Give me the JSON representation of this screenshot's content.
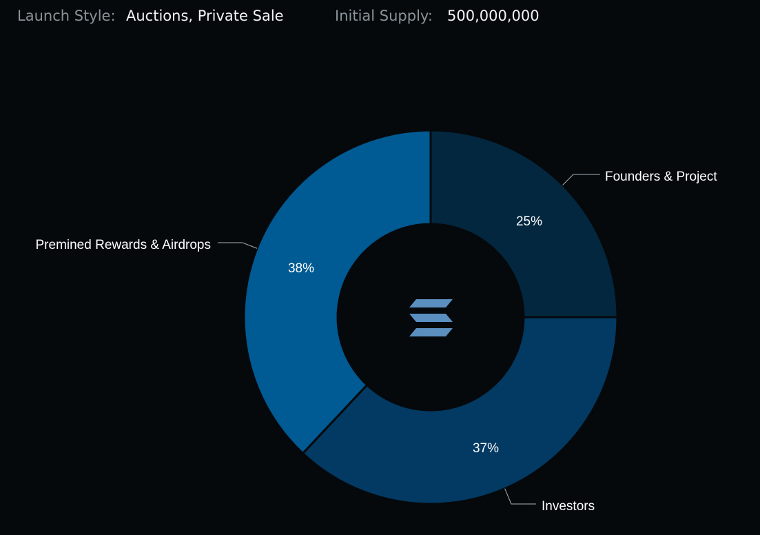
{
  "info": {
    "launch_style_label": "Launch Style:",
    "launch_style_value": "Auctions, Private Sale",
    "initial_supply_label": "Initial Supply:",
    "initial_supply_value": "500,000,000"
  },
  "center_icon": "solana-logo-icon",
  "chart_data": {
    "type": "pie",
    "donut": true,
    "slices": [
      {
        "label": "Founders & Project",
        "value": 25,
        "display": "25%",
        "color": "#03273f"
      },
      {
        "label": "Investors",
        "value": 37,
        "display": "37%",
        "color": "#023a63"
      },
      {
        "label": "Premined Rewards & Airdrops",
        "value": 38,
        "display": "38%",
        "color": "#005a93"
      }
    ]
  },
  "colors": {
    "background": "#05090c",
    "leader_line": "#a7b2bb",
    "icon": "#5a8fc0"
  }
}
